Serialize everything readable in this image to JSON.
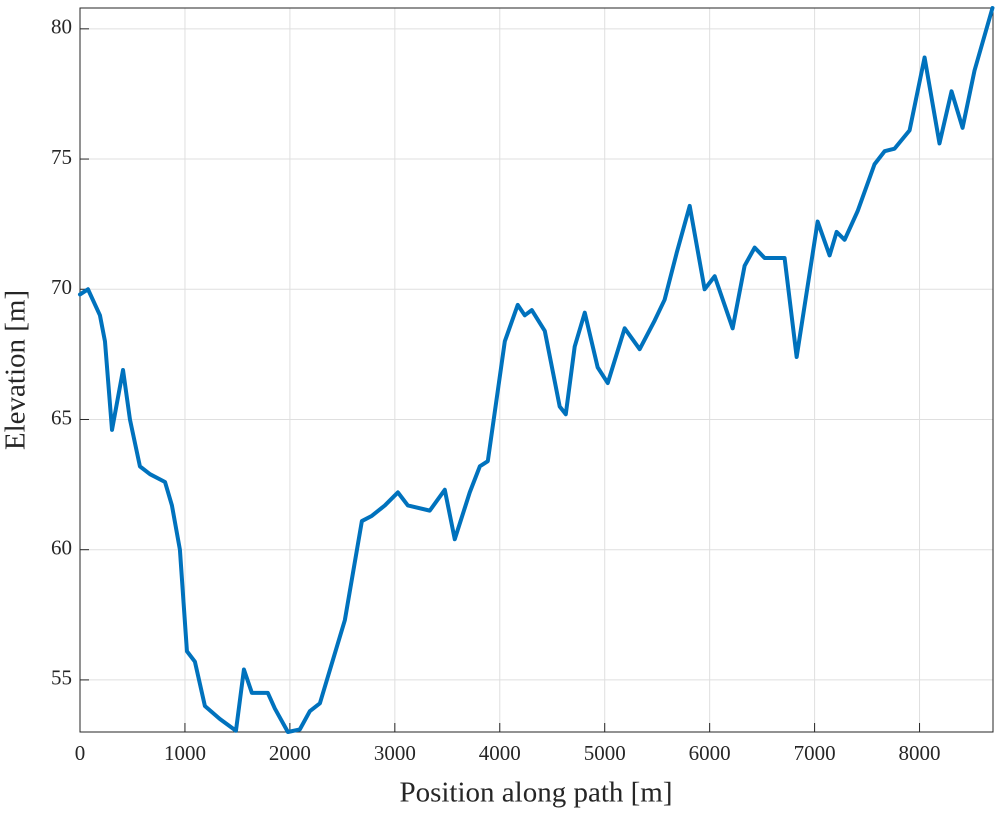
{
  "chart_data": {
    "type": "line",
    "xlabel": "Position along path [m]",
    "ylabel": "Elevation [m]",
    "xlim": [
      0,
      8700
    ],
    "ylim": [
      53,
      80.8
    ],
    "xticks": [
      0,
      1000,
      2000,
      3000,
      4000,
      5000,
      6000,
      7000,
      8000
    ],
    "yticks": [
      55,
      60,
      65,
      70,
      75,
      80
    ],
    "grid": true,
    "x": [
      0,
      76,
      190,
      238,
      305,
      410,
      476,
      571,
      667,
      762,
      810,
      876,
      952,
      1019,
      1095,
      1190,
      1333,
      1486,
      1562,
      1638,
      1790,
      1857,
      1981,
      2095,
      2190,
      2286,
      2524,
      2686,
      2781,
      2905,
      3029,
      3124,
      3333,
      3476,
      3571,
      3714,
      3810,
      3886,
      4048,
      4171,
      4238,
      4305,
      4429,
      4571,
      4629,
      4714,
      4810,
      4933,
      5029,
      5190,
      5333,
      5476,
      5571,
      5686,
      5810,
      5952,
      6048,
      6219,
      6333,
      6429,
      6524,
      6714,
      6829,
      7029,
      7143,
      7210,
      7286,
      7410,
      7571,
      7667,
      7762,
      7905,
      8048,
      8190,
      8305,
      8410,
      8524,
      8695
    ],
    "series": [
      {
        "color": "#0072bd",
        "values": [
          69.8,
          70.0,
          69.0,
          68.0,
          64.6,
          66.9,
          65.0,
          63.2,
          62.9,
          62.7,
          62.6,
          61.7,
          60.0,
          56.1,
          55.7,
          54.0,
          53.5,
          53.05,
          55.4,
          54.5,
          54.5,
          53.9,
          53.0,
          53.1,
          53.8,
          54.1,
          57.3,
          61.1,
          61.3,
          61.7,
          62.2,
          61.7,
          61.5,
          62.3,
          60.4,
          62.2,
          63.2,
          63.4,
          68.0,
          69.4,
          69.0,
          69.2,
          68.4,
          65.5,
          65.2,
          67.8,
          69.1,
          67.0,
          66.4,
          68.5,
          67.7,
          68.8,
          69.6,
          71.4,
          73.2,
          70.0,
          70.5,
          68.5,
          70.9,
          71.6,
          71.2,
          71.2,
          67.4,
          72.6,
          71.3,
          72.2,
          71.9,
          73.0,
          74.8,
          75.3,
          75.4,
          76.1,
          78.9,
          75.6,
          77.6,
          76.2,
          78.4,
          80.8
        ]
      }
    ]
  }
}
